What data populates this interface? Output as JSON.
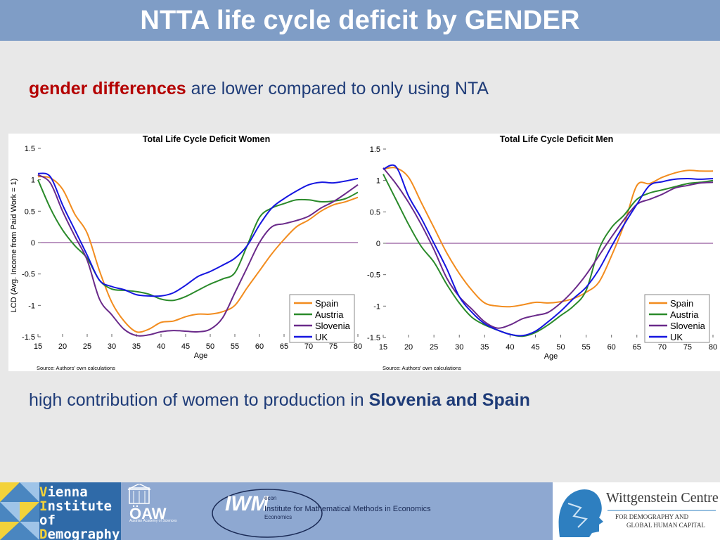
{
  "header": {
    "title": "NTTA life cycle deficit by GENDER"
  },
  "text": {
    "line1_highlight": "gender differences",
    "line1_rest": " are lower compared to only using NTA",
    "line2_prefix": "high contribution of women to production in ",
    "line2_highlight": "Slovenia and Spain"
  },
  "colors": {
    "Spain": "#f28c1e",
    "Austria": "#2a8a2a",
    "Slovenia": "#6a2a8a",
    "UK": "#1515e0",
    "zero_line": "#7a2f86"
  },
  "footer": {
    "vid_line1_initial": "V",
    "vid_line1_rest": "ienna",
    "vid_line2_initial": "I",
    "vid_line2_rest": "nstitute of",
    "vid_line3_initial": "D",
    "vid_line3_rest": "emography",
    "oaw_label": "ÖAW",
    "oaw_sub": "Austrian Academy of Sciences",
    "iwm_logo": "IWM",
    "econ_label": "econ",
    "iwm_name": "Institute for Mathematical Methods in Economics",
    "iwm_sub": "Economics",
    "wc_title": "Wittgenstein Centre",
    "wc_sub1": "FOR DEMOGRAPHY AND",
    "wc_sub2": "GLOBAL HUMAN CAPITAL"
  },
  "chart_data": [
    {
      "type": "line",
      "title": "Total Life Cycle Deficit Women",
      "xlabel": "Age",
      "ylabel": "LCD (Avg. Income from Paid Work = 1)",
      "source": "Source: Authors' own calculations",
      "xlim": [
        15,
        80
      ],
      "ylim": [
        -1.5,
        1.5
      ],
      "xticks": [
        15,
        20,
        25,
        30,
        35,
        40,
        45,
        50,
        55,
        60,
        65,
        70,
        75,
        80
      ],
      "yticks": [
        1.5,
        1,
        0.5,
        0,
        -0.5,
        -1,
        -1.5
      ],
      "ytick_labels": [
        "1.5",
        "1",
        "0.5",
        "0",
        "-0.5",
        "-1",
        "-1.5"
      ],
      "x": [
        15,
        17.5,
        20,
        22.5,
        25,
        27.5,
        30,
        32.5,
        35,
        37.5,
        40,
        42.5,
        45,
        47.5,
        50,
        52.5,
        55,
        57.5,
        60,
        62.5,
        65,
        67.5,
        70,
        72.5,
        75,
        77.5,
        80
      ],
      "series": [
        {
          "name": "Spain",
          "values": [
            1.05,
            1.03,
            0.85,
            0.45,
            0.15,
            -0.45,
            -0.95,
            -1.25,
            -1.42,
            -1.38,
            -1.27,
            -1.25,
            -1.18,
            -1.14,
            -1.14,
            -1.1,
            -1.0,
            -0.72,
            -0.45,
            -0.18,
            0.05,
            0.25,
            0.36,
            0.5,
            0.6,
            0.65,
            0.72
          ]
        },
        {
          "name": "Austria",
          "values": [
            1.0,
            0.55,
            0.2,
            -0.05,
            -0.25,
            -0.6,
            -0.74,
            -0.76,
            -0.78,
            -0.82,
            -0.9,
            -0.92,
            -0.86,
            -0.76,
            -0.66,
            -0.58,
            -0.48,
            -0.05,
            0.4,
            0.55,
            0.62,
            0.68,
            0.68,
            0.65,
            0.66,
            0.7,
            0.8
          ]
        },
        {
          "name": "Slovenia",
          "values": [
            1.08,
            0.95,
            0.5,
            0.1,
            -0.28,
            -0.9,
            -1.15,
            -1.38,
            -1.48,
            -1.47,
            -1.42,
            -1.4,
            -1.41,
            -1.42,
            -1.38,
            -1.2,
            -0.8,
            -0.4,
            0.0,
            0.25,
            0.3,
            0.35,
            0.42,
            0.55,
            0.65,
            0.78,
            0.92
          ]
        },
        {
          "name": "UK",
          "values": [
            1.1,
            1.05,
            0.6,
            0.2,
            -0.2,
            -0.6,
            -0.7,
            -0.75,
            -0.83,
            -0.85,
            -0.85,
            -0.8,
            -0.68,
            -0.54,
            -0.46,
            -0.36,
            -0.25,
            -0.05,
            0.28,
            0.55,
            0.7,
            0.82,
            0.92,
            0.96,
            0.95,
            0.98,
            1.02
          ]
        }
      ],
      "legend": [
        "Spain",
        "Austria",
        "Slovenia",
        "UK"
      ],
      "legend_position": "bottom-right"
    },
    {
      "type": "line",
      "title": "Total Life Cycle Deficit Men",
      "xlabel": "Age",
      "ylabel": "",
      "source": "Source: Authors' own calculations",
      "xlim": [
        15,
        80
      ],
      "ylim": [
        -1.5,
        1.5
      ],
      "xticks": [
        15,
        20,
        25,
        30,
        35,
        40,
        45,
        50,
        55,
        60,
        65,
        70,
        75,
        80
      ],
      "yticks": [
        1.5,
        1,
        0.5,
        0,
        -0.5,
        -1,
        -1.5
      ],
      "ytick_labels": [
        "1.5",
        "1",
        "0.5",
        "0",
        "-0.5",
        "-1",
        "-1.5"
      ],
      "x": [
        15,
        17.5,
        20,
        22.5,
        25,
        27.5,
        30,
        32.5,
        35,
        37.5,
        40,
        42.5,
        45,
        47.5,
        50,
        52.5,
        55,
        57.5,
        60,
        62.5,
        65,
        67.5,
        70,
        72.5,
        75,
        77.5,
        80
      ],
      "series": [
        {
          "name": "Spain",
          "values": [
            1.18,
            1.2,
            1.05,
            0.65,
            0.25,
            -0.15,
            -0.48,
            -0.75,
            -0.95,
            -1.0,
            -1.01,
            -0.98,
            -0.94,
            -0.95,
            -0.93,
            -0.88,
            -0.78,
            -0.62,
            -0.2,
            0.3,
            0.92,
            0.95,
            1.05,
            1.12,
            1.16,
            1.15,
            1.15
          ]
        },
        {
          "name": "Austria",
          "values": [
            1.1,
            0.7,
            0.3,
            -0.05,
            -0.3,
            -0.65,
            -0.95,
            -1.18,
            -1.3,
            -1.38,
            -1.45,
            -1.48,
            -1.42,
            -1.3,
            -1.15,
            -1.0,
            -0.75,
            -0.1,
            0.25,
            0.45,
            0.7,
            0.8,
            0.85,
            0.9,
            0.95,
            0.97,
            1.0
          ]
        },
        {
          "name": "Slovenia",
          "values": [
            1.2,
            0.95,
            0.65,
            0.3,
            -0.1,
            -0.55,
            -0.85,
            -1.05,
            -1.25,
            -1.35,
            -1.3,
            -1.2,
            -1.15,
            -1.1,
            -0.95,
            -0.75,
            -0.5,
            -0.2,
            0.1,
            0.38,
            0.62,
            0.7,
            0.78,
            0.88,
            0.92,
            0.96,
            0.97
          ]
        },
        {
          "name": "UK",
          "values": [
            1.18,
            1.22,
            0.75,
            0.4,
            0.0,
            -0.4,
            -0.85,
            -1.1,
            -1.28,
            -1.38,
            -1.45,
            -1.47,
            -1.4,
            -1.25,
            -1.08,
            -0.88,
            -0.7,
            -0.42,
            -0.05,
            0.3,
            0.62,
            0.92,
            0.98,
            1.02,
            1.03,
            1.02,
            1.03
          ]
        }
      ],
      "legend": [
        "Spain",
        "Austria",
        "Slovenia",
        "UK"
      ],
      "legend_position": "bottom-right"
    }
  ]
}
